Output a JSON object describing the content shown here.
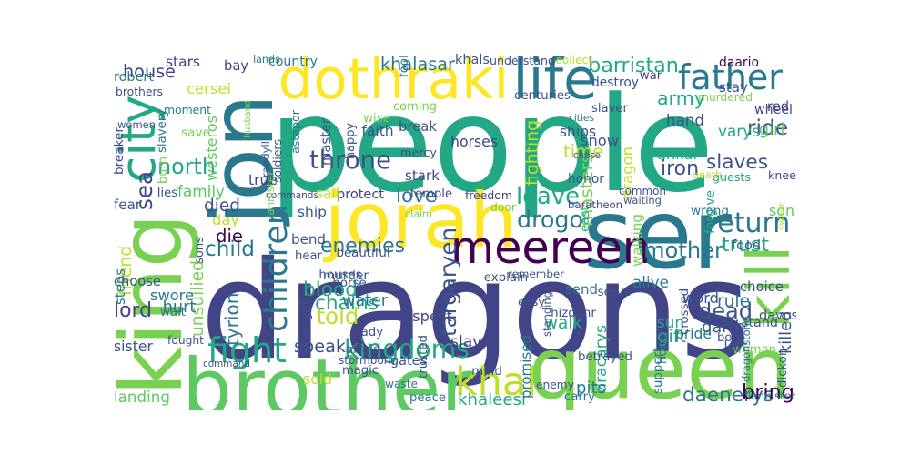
{
  "words": [
    {
      "text": "people",
      "color": "#22a884"
    },
    {
      "text": "dragons",
      "color": "#414487"
    },
    {
      "text": "queen",
      "color": "#7ad151"
    },
    {
      "text": "ser",
      "color": "#2a788e"
    },
    {
      "text": "brother",
      "color": "#5ec962"
    },
    {
      "text": "king",
      "color": "#7ad151"
    },
    {
      "text": "jon",
      "color": "#2a788e"
    },
    {
      "text": "jorah",
      "color": "#fde725"
    },
    {
      "text": "dothraki",
      "color": "#fde725"
    },
    {
      "text": "kill",
      "color": "#7ad151"
    },
    {
      "text": "meereen",
      "color": "#440154"
    },
    {
      "text": "life",
      "color": "#2a788e"
    },
    {
      "text": "father",
      "color": "#2a788e"
    },
    {
      "text": "city",
      "color": "#22a884"
    },
    {
      "text": "children",
      "color": "#2a788e"
    },
    {
      "text": "fight",
      "color": "#22a884"
    },
    {
      "text": "khal",
      "color": "#bddf26"
    },
    {
      "text": "kingdoms",
      "color": "#22a884"
    },
    {
      "text": "blood",
      "color": "#22a884"
    },
    {
      "text": "lord",
      "color": "#414487"
    },
    {
      "text": "sea",
      "color": "#414487"
    },
    {
      "text": "throne",
      "color": "#3b528b"
    },
    {
      "text": "drogo",
      "color": "#2a788e"
    },
    {
      "text": "enemies",
      "color": "#2a788e"
    },
    {
      "text": "mother",
      "color": "#2a788e"
    },
    {
      "text": "return",
      "color": "#2a788e"
    },
    {
      "text": "daenerys",
      "color": "#2a788e"
    },
    {
      "text": "targaryen",
      "color": "#3b528b"
    },
    {
      "text": "unsullied",
      "color": "#7ad151"
    },
    {
      "text": "told",
      "color": "#bddf26"
    },
    {
      "text": "dead",
      "color": "#3b528b"
    },
    {
      "text": "slaves",
      "color": "#3b528b"
    },
    {
      "text": "speak",
      "color": "#3b528b"
    },
    {
      "text": "leave",
      "color": "#22a884"
    },
    {
      "text": "north",
      "color": "#22a884"
    },
    {
      "text": "army",
      "color": "#22a884"
    },
    {
      "text": "iron",
      "color": "#3b528b"
    },
    {
      "text": "masters",
      "color": "#7ad151"
    },
    {
      "text": "dragon",
      "color": "#bddf26"
    },
    {
      "text": "house",
      "color": "#414487"
    },
    {
      "text": "hand",
      "color": "#3b528b"
    },
    {
      "text": "ride",
      "color": "#3b528b"
    },
    {
      "text": "walk",
      "color": "#22a884"
    },
    {
      "text": "bring",
      "color": "#440154"
    },
    {
      "text": "chains",
      "color": "#22a884"
    },
    {
      "text": "khaleesi",
      "color": "#22a884"
    },
    {
      "text": "tyrion",
      "color": "#2a788e"
    },
    {
      "text": "fighting",
      "color": "#bddf26"
    },
    {
      "text": "time",
      "color": "#bddf26"
    },
    {
      "text": "friend",
      "color": "#bddf26"
    },
    {
      "text": "child",
      "color": "#2a788e"
    },
    {
      "text": "trust",
      "color": "#22a884"
    },
    {
      "text": "barristan",
      "color": "#22a884"
    },
    {
      "text": "snow",
      "color": "#3b528b"
    },
    {
      "text": "die",
      "color": "#440154"
    },
    {
      "text": "khalasar",
      "color": "#2a788e"
    },
    {
      "text": "promised",
      "color": "#2a788e"
    },
    {
      "text": "dracarys",
      "color": "#22a884"
    },
    {
      "text": "cersei",
      "color": "#bddf26"
    },
    {
      "text": "westeros",
      "color": "#5ec962"
    },
    {
      "text": "daario",
      "color": "#440154"
    },
    {
      "text": "love",
      "color": "#2a788e"
    },
    {
      "text": "sister",
      "color": "#3b528b"
    },
    {
      "text": "landing",
      "color": "#5ec962"
    },
    {
      "text": "son",
      "color": "#5ec962"
    },
    {
      "text": "yunkai",
      "color": "#22a884"
    },
    {
      "text": "varys",
      "color": "#22a884"
    },
    {
      "text": "killed",
      "color": "#3b528b"
    },
    {
      "text": "woman",
      "color": "#7ad151"
    },
    {
      "text": "sun",
      "color": "#22a884"
    },
    {
      "text": "gift",
      "color": "#22a884"
    },
    {
      "text": "slave",
      "color": "#414487"
    },
    {
      "text": "family",
      "color": "#5ec962"
    },
    {
      "text": "died",
      "color": "#3b528b"
    },
    {
      "text": "choose",
      "color": "#3b528b"
    },
    {
      "text": "davos",
      "color": "#3b528b"
    },
    {
      "text": "horses",
      "color": "#414487"
    },
    {
      "text": "wrong",
      "color": "#2a788e"
    },
    {
      "text": "pits",
      "color": "#2a788e"
    },
    {
      "text": "knee",
      "color": "#414487"
    },
    {
      "text": "stars",
      "color": "#414487"
    },
    {
      "text": "bay",
      "color": "#414487"
    },
    {
      "text": "robert",
      "color": "#2a788e"
    },
    {
      "text": "country",
      "color": "#2a788e"
    },
    {
      "text": "khals",
      "color": "#3b528b"
    },
    {
      "text": "understand",
      "color": "#3b528b"
    },
    {
      "text": "collect",
      "color": "#bddf26"
    },
    {
      "text": "stay",
      "color": "#3b528b"
    },
    {
      "text": "lands",
      "color": "#2a788e"
    },
    {
      "text": "fool",
      "color": "#2a788e"
    },
    {
      "text": "brothers",
      "color": "#3b528b"
    },
    {
      "text": "moment",
      "color": "#2a788e"
    },
    {
      "text": "husband",
      "color": "#7ad151"
    },
    {
      "text": "astapor",
      "color": "#2a788e"
    },
    {
      "text": "coming",
      "color": "#7ad151"
    },
    {
      "text": "centuries",
      "color": "#3b528b"
    },
    {
      "text": "destroy",
      "color": "#3b528b"
    },
    {
      "text": "war",
      "color": "#414487"
    },
    {
      "text": "murdered",
      "color": "#7ad151"
    },
    {
      "text": "women",
      "color": "#3b528b"
    },
    {
      "text": "save",
      "color": "#7ad151"
    },
    {
      "text": "slavery",
      "color": "#2a788e"
    },
    {
      "text": "breaker",
      "color": "#414487"
    },
    {
      "text": "burn",
      "color": "#7ad151"
    },
    {
      "text": "wise",
      "color": "#7ad151"
    },
    {
      "text": "break",
      "color": "#3b528b"
    },
    {
      "text": "faith",
      "color": "#3b528b"
    },
    {
      "text": "randyll",
      "color": "#3b528b"
    },
    {
      "text": "soldiers",
      "color": "#3b528b"
    },
    {
      "text": "master",
      "color": "#3b528b"
    },
    {
      "text": "happy",
      "color": "#3b528b"
    },
    {
      "text": "mercy",
      "color": "#3b528b"
    },
    {
      "text": "ships",
      "color": "#3b528b"
    },
    {
      "text": "honor",
      "color": "#3b528b"
    },
    {
      "text": "cities",
      "color": "#2a788e"
    },
    {
      "text": "chose",
      "color": "#3b528b"
    },
    {
      "text": "slaver",
      "color": "#3b528b"
    },
    {
      "text": "waiting",
      "color": "#3b528b"
    },
    {
      "text": "wheel",
      "color": "#414487"
    },
    {
      "text": "girl",
      "color": "#5ec962"
    },
    {
      "text": "red",
      "color": "#414487"
    },
    {
      "text": "guests",
      "color": "#22a884"
    },
    {
      "text": "death",
      "color": "#bddf26"
    },
    {
      "text": "swear",
      "color": "#bddf26"
    },
    {
      "text": "east",
      "color": "#22a884"
    },
    {
      "text": "common",
      "color": "#3b528b"
    },
    {
      "text": "lies",
      "color": "#3b528b"
    },
    {
      "text": "fear",
      "color": "#3b528b"
    },
    {
      "text": "true",
      "color": "#414487"
    },
    {
      "text": "stark",
      "color": "#414487"
    },
    {
      "text": "commands",
      "color": "#414487"
    },
    {
      "text": "protect",
      "color": "#414487"
    },
    {
      "text": "temple",
      "color": "#414487"
    },
    {
      "text": "freedom",
      "color": "#414487"
    },
    {
      "text": "sail",
      "color": "#bddf26"
    },
    {
      "text": "lannister",
      "color": "#7ad151"
    },
    {
      "text": "claim",
      "color": "#7ad151"
    },
    {
      "text": "door",
      "color": "#7ad151"
    },
    {
      "text": "baratheon",
      "color": "#414487"
    },
    {
      "text": "food",
      "color": "#3b528b"
    },
    {
      "text": "forgive",
      "color": "#22a884"
    },
    {
      "text": "walking",
      "color": "#7ad151"
    },
    {
      "text": "day",
      "color": "#bddf26"
    },
    {
      "text": "sons",
      "color": "#3b528b"
    },
    {
      "text": "ship",
      "color": "#3b528b"
    },
    {
      "text": "bend",
      "color": "#3b528b"
    },
    {
      "text": "remember",
      "color": "#3b528b"
    },
    {
      "text": "houses",
      "color": "#3b528b"
    },
    {
      "text": "explain",
      "color": "#3b528b"
    },
    {
      "text": "hear",
      "color": "#3b528b"
    },
    {
      "text": "beautiful",
      "color": "#3b528b"
    },
    {
      "text": "horse",
      "color": "#3b528b"
    },
    {
      "text": "murder",
      "color": "#3b528b"
    },
    {
      "text": "water",
      "color": "#2a788e"
    },
    {
      "text": "send",
      "color": "#2a788e"
    },
    {
      "text": "alive",
      "color": "#2a788e"
    },
    {
      "text": "word",
      "color": "#3b528b"
    },
    {
      "text": "steps",
      "color": "#2a788e"
    },
    {
      "text": "swore",
      "color": "#2a788e"
    },
    {
      "text": "hurt",
      "color": "#2a788e"
    },
    {
      "text": "wait",
      "color": "#2a788e"
    },
    {
      "text": "tonight",
      "color": "#3b528b"
    },
    {
      "text": "lady",
      "color": "#3b528b"
    },
    {
      "text": "trusted",
      "color": "#3b528b"
    },
    {
      "text": "serve",
      "color": "#3b528b"
    },
    {
      "text": "standing",
      "color": "#3b528b"
    },
    {
      "text": "easy",
      "color": "#3b528b"
    },
    {
      "text": "hizdahr",
      "color": "#3b528b"
    },
    {
      "text": "crossed",
      "color": "#3b528b"
    },
    {
      "text": "qarth",
      "color": "#3b528b"
    },
    {
      "text": "choice",
      "color": "#3b528b"
    },
    {
      "text": "stand",
      "color": "#3b528b"
    },
    {
      "text": "born",
      "color": "#3b528b"
    },
    {
      "text": "left",
      "color": "#3b528b"
    },
    {
      "text": "dickon",
      "color": "#3b528b"
    },
    {
      "text": "respect",
      "color": "#414487"
    },
    {
      "text": "afraid",
      "color": "#3b528b"
    },
    {
      "text": "stormborn",
      "color": "#3b528b"
    },
    {
      "text": "fought",
      "color": "#3b528b"
    },
    {
      "text": "command",
      "color": "#3b528b"
    },
    {
      "text": "magic",
      "color": "#3b528b"
    },
    {
      "text": "gates",
      "color": "#3b528b"
    },
    {
      "text": "mind",
      "color": "#3b528b"
    },
    {
      "text": "enemy",
      "color": "#3b528b"
    },
    {
      "text": "betrayed",
      "color": "#3b528b"
    },
    {
      "text": "support",
      "color": "#2a788e"
    },
    {
      "text": "hope",
      "color": "#2a788e"
    },
    {
      "text": "pride",
      "color": "#2a788e"
    },
    {
      "text": "rule",
      "color": "#2a788e"
    },
    {
      "text": "dragonstone",
      "color": "#2a788e"
    },
    {
      "text": "lannister",
      "color": "#2a788e"
    },
    {
      "text": "carry",
      "color": "#2a788e"
    },
    {
      "text": "peace",
      "color": "#2a788e"
    },
    {
      "text": "waste",
      "color": "#2a788e"
    },
    {
      "text": "sold",
      "color": "#bddf26"
    },
    {
      "text": "dragonglass",
      "color": "#bddf26"
    },
    {
      "text": "gold",
      "color": "#bddf26"
    },
    {
      "text": "chair",
      "color": "#bddf26"
    },
    {
      "text": "lead",
      "color": "#bddf26"
    },
    {
      "text": "wall",
      "color": "#5ec962"
    }
  ]
}
